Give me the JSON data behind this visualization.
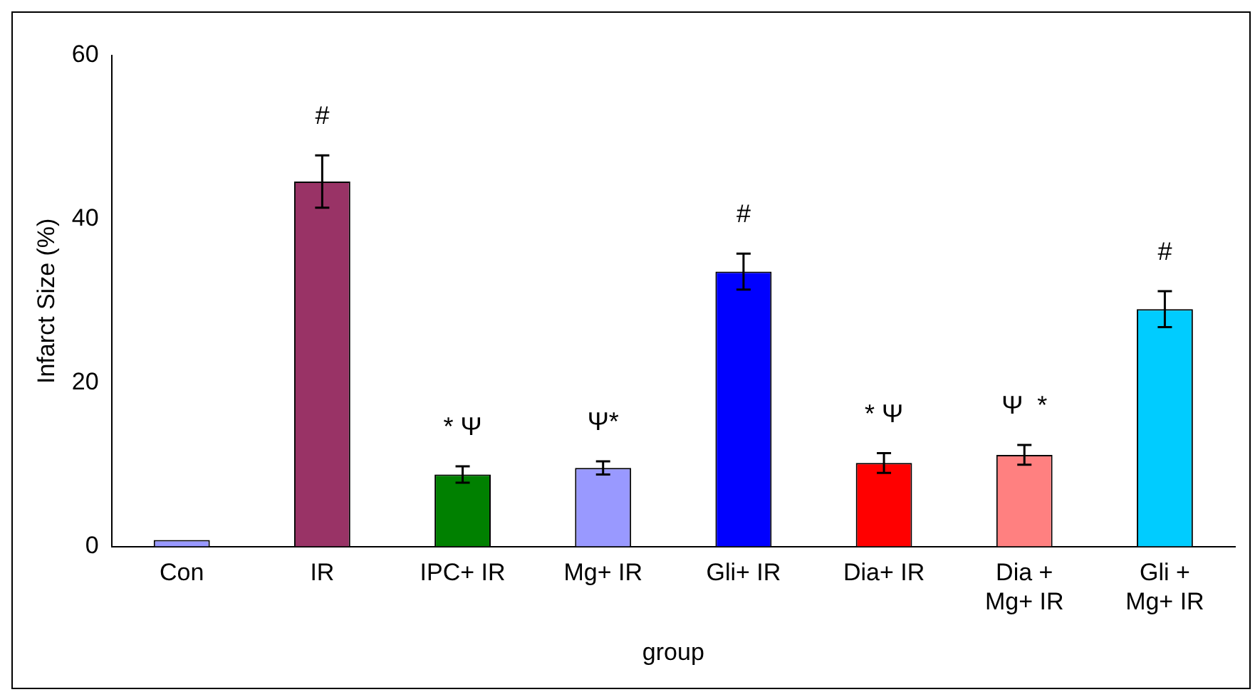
{
  "chart_data": {
    "type": "bar",
    "xlabel": "group",
    "ylabel": "Infarct Size (%)",
    "categories": [
      "Con",
      "IR",
      "IPC+ IR",
      "Mg+ IR",
      "Gli+ IR",
      "Dia+ IR",
      "Dia +\nMg+ IR",
      "Gli +\nMg+ IR"
    ],
    "values": [
      0.8,
      44.6,
      8.8,
      9.6,
      33.6,
      10.2,
      11.2,
      29
    ],
    "colors": [
      "#9999ff",
      "#993366",
      "#008000",
      "#9999ff",
      "#0000ff",
      "#ff0000",
      "#ff8080",
      "#00ccff"
    ],
    "errors": [
      null,
      3.2,
      1,
      0.8,
      2.2,
      1.2,
      1.2,
      2.2
    ],
    "ylim": [
      0,
      60
    ],
    "yticks": [
      0,
      20,
      40,
      60
    ],
    "grid": false,
    "legend": false,
    "annotations": [
      {
        "text": "#",
        "x": "IR",
        "y": 44.6
      },
      {
        "text": "* Ψ",
        "x": "IPC+ IR",
        "y": 8.8
      },
      {
        "text": "Ψ*",
        "x": "Mg+ IR",
        "y": 9.6
      },
      {
        "text": "#",
        "x": "Gli+ IR",
        "y": 33.6
      },
      {
        "text": "* Ψ",
        "x": "Dia+ IR",
        "y": 10.2
      },
      {
        "text": "Ψ  *",
        "x": "Dia +\nMg+ IR",
        "y": 11.2
      },
      {
        "text": "#",
        "x": "Gli +\nMg+ IR",
        "y": 29
      }
    ]
  }
}
